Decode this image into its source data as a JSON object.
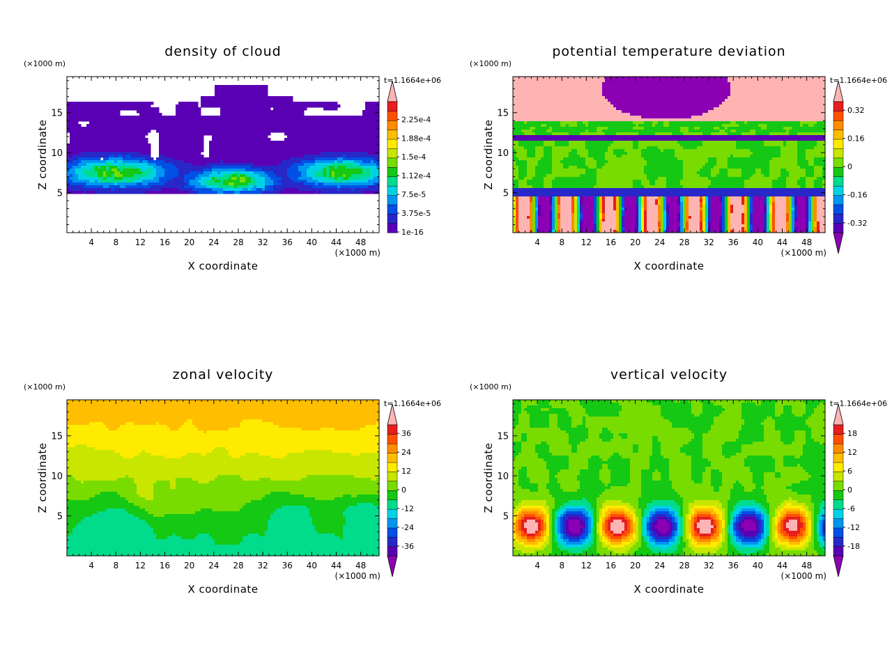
{
  "chart_data": [
    {
      "type": "heatmap",
      "title": "density of cloud",
      "xlabel": "X coordinate",
      "ylabel": "Z coordinate",
      "x_unit": "(×1000 m)",
      "y_unit": "(×1000 m)",
      "time_stamp": "t=1.1664e+06",
      "xlim": [
        0,
        51
      ],
      "ylim": [
        0,
        19.5
      ],
      "x_ticks": [
        "4",
        "8",
        "12",
        "16",
        "20",
        "24",
        "28",
        "32",
        "36",
        "40",
        "44",
        "48"
      ],
      "y_ticks": [
        "5",
        "10",
        "15"
      ],
      "colorbar": {
        "ticks": [
          "1e-16",
          "3.75e-5",
          "7.5e-5",
          "1.12e-4",
          "1.5e-4",
          "1.88e-4",
          "2.25e-4"
        ],
        "extend": "max",
        "colors": [
          "#5a00b4",
          "#2828c8",
          "#0050e6",
          "#0096f0",
          "#00d2e6",
          "#00dc8c",
          "#14c814",
          "#78dc00",
          "#c8e600",
          "#ffeb00",
          "#ffbe00",
          "#ff8c00",
          "#ff5000",
          "#e61e1e",
          "#ffb4b4"
        ]
      },
      "grid": false
    },
    {
      "type": "heatmap",
      "title": "potential temperature deviation",
      "xlabel": "X coordinate",
      "ylabel": "Z coordinate",
      "x_unit": "(×1000 m)",
      "y_unit": "(×1000 m)",
      "time_stamp": "t=1.1664e+06",
      "xlim": [
        0,
        51
      ],
      "ylim": [
        0,
        19.5
      ],
      "x_ticks": [
        "4",
        "8",
        "12",
        "16",
        "20",
        "24",
        "28",
        "32",
        "36",
        "40",
        "44",
        "48"
      ],
      "y_ticks": [
        "5",
        "10",
        "15"
      ],
      "colorbar": {
        "ticks": [
          "-0.32",
          "-0.16",
          "0",
          "0.16",
          "0.32"
        ],
        "extend": "both",
        "colors": [
          "#8c00b4",
          "#5a00b4",
          "#2828c8",
          "#0050e6",
          "#0096f0",
          "#00d2e6",
          "#00dc8c",
          "#14c814",
          "#78dc00",
          "#c8e600",
          "#ffeb00",
          "#ffbe00",
          "#ff8c00",
          "#ff5000",
          "#e61e1e",
          "#ffb4b4"
        ]
      },
      "grid": false
    },
    {
      "type": "heatmap",
      "title": "zonal velocity",
      "xlabel": "X coordinate",
      "ylabel": "Z coordinate",
      "x_unit": "(×1000 m)",
      "y_unit": "(×1000 m)",
      "time_stamp": "t=1.1664e+06",
      "xlim": [
        0,
        51
      ],
      "ylim": [
        0,
        19.5
      ],
      "x_ticks": [
        "4",
        "8",
        "12",
        "16",
        "20",
        "24",
        "28",
        "32",
        "36",
        "40",
        "44",
        "48"
      ],
      "y_ticks": [
        "5",
        "10",
        "15"
      ],
      "colorbar": {
        "ticks": [
          "-36",
          "-24",
          "-12",
          "0",
          "12",
          "24",
          "36"
        ],
        "extend": "both",
        "colors": [
          "#8c00b4",
          "#5a00b4",
          "#2828c8",
          "#0050e6",
          "#0096f0",
          "#00d2e6",
          "#00dc8c",
          "#14c814",
          "#78dc00",
          "#c8e600",
          "#ffeb00",
          "#ffbe00",
          "#ff8c00",
          "#ff5000",
          "#e61e1e",
          "#ffb4b4"
        ]
      },
      "grid": false
    },
    {
      "type": "heatmap",
      "title": "vertical velocity",
      "xlabel": "X coordinate",
      "ylabel": "Z coordinate",
      "x_unit": "(×1000 m)",
      "y_unit": "(×1000 m)",
      "time_stamp": "t=1.1664e+06",
      "xlim": [
        0,
        51
      ],
      "ylim": [
        0,
        19.5
      ],
      "x_ticks": [
        "4",
        "8",
        "12",
        "16",
        "20",
        "24",
        "28",
        "32",
        "36",
        "40",
        "44",
        "48"
      ],
      "y_ticks": [
        "5",
        "10",
        "15"
      ],
      "colorbar": {
        "ticks": [
          "-18",
          "-12",
          "-6",
          "0",
          "6",
          "12",
          "18"
        ],
        "extend": "both",
        "colors": [
          "#8c00b4",
          "#5a00b4",
          "#2828c8",
          "#0050e6",
          "#0096f0",
          "#00d2e6",
          "#00dc8c",
          "#14c814",
          "#78dc00",
          "#c8e600",
          "#ffeb00",
          "#ffbe00",
          "#ff8c00",
          "#ff5000",
          "#e61e1e",
          "#ffb4b4"
        ]
      },
      "grid": false
    }
  ]
}
